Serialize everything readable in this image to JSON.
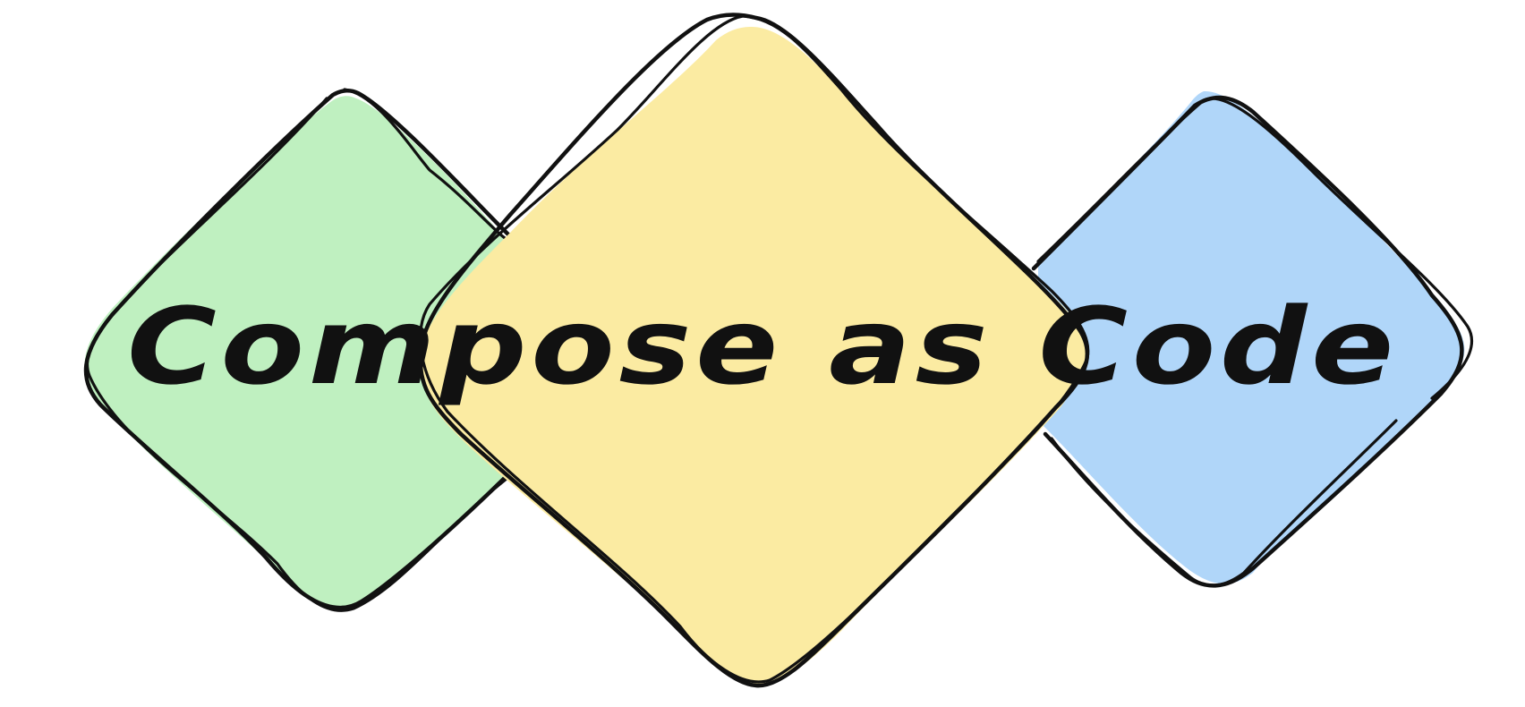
{
  "logo": {
    "text": "Compose as Code",
    "colors": {
      "left_diamond": "#bff0c0",
      "center_diamond": "#fbeba2",
      "right_diamond": "#b0d6f9",
      "outline": "#111111",
      "background": "#ffffff"
    },
    "shapes": [
      "green-diamond",
      "yellow-diamond",
      "blue-diamond"
    ]
  }
}
